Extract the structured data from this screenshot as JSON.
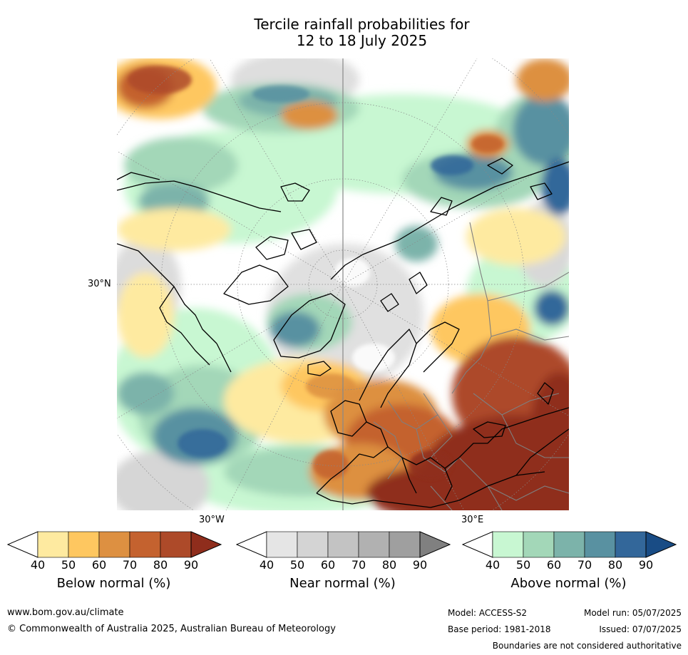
{
  "title": {
    "line1": "Tercile rainfall probabilities for",
    "line2": "12 to 18 July 2025"
  },
  "map": {
    "projection": "north polar stereographic",
    "lat_label": "30°N",
    "lon_label_west": "30°W",
    "lon_label_east": "30°E",
    "colors": {
      "coast": "#000000",
      "borders": "#7f7f7f",
      "graticule": "#888888",
      "background": "#ffffff"
    }
  },
  "colorbars": [
    {
      "id": "below",
      "title": "Below normal (%)",
      "ticks": [
        "40",
        "50",
        "60",
        "70",
        "80",
        "90"
      ],
      "colors": [
        "#ffffff",
        "#feeaa0",
        "#fec760",
        "#dd9041",
        "#c4622f",
        "#ad4a29",
        "#8f2d1c"
      ]
    },
    {
      "id": "near",
      "title": "Near normal (%)",
      "ticks": [
        "40",
        "50",
        "60",
        "70",
        "80",
        "90"
      ],
      "colors": [
        "#ffffff",
        "#e5e5e5",
        "#d4d4d4",
        "#c3c3c3",
        "#b1b1b1",
        "#9f9f9f",
        "#808080"
      ]
    },
    {
      "id": "above",
      "title": "Above normal (%)",
      "ticks": [
        "40",
        "50",
        "60",
        "70",
        "80",
        "90"
      ],
      "colors": [
        "#ffffff",
        "#c8f7d2",
        "#a3d7b8",
        "#7cb3aa",
        "#5991a1",
        "#33679a",
        "#194c85"
      ]
    }
  ],
  "footer": {
    "url": "www.bom.gov.au/climate",
    "copyright": "© Commonwealth of Australia 2025, Australian Bureau of Meteorology",
    "model": "Model: ACCESS-S2",
    "base_period": "Base period: 1981-2018",
    "model_run": "Model run: 05/07/2025",
    "issued": "Issued: 07/07/2025",
    "boundaries": "Boundaries are not considered authoritative"
  }
}
